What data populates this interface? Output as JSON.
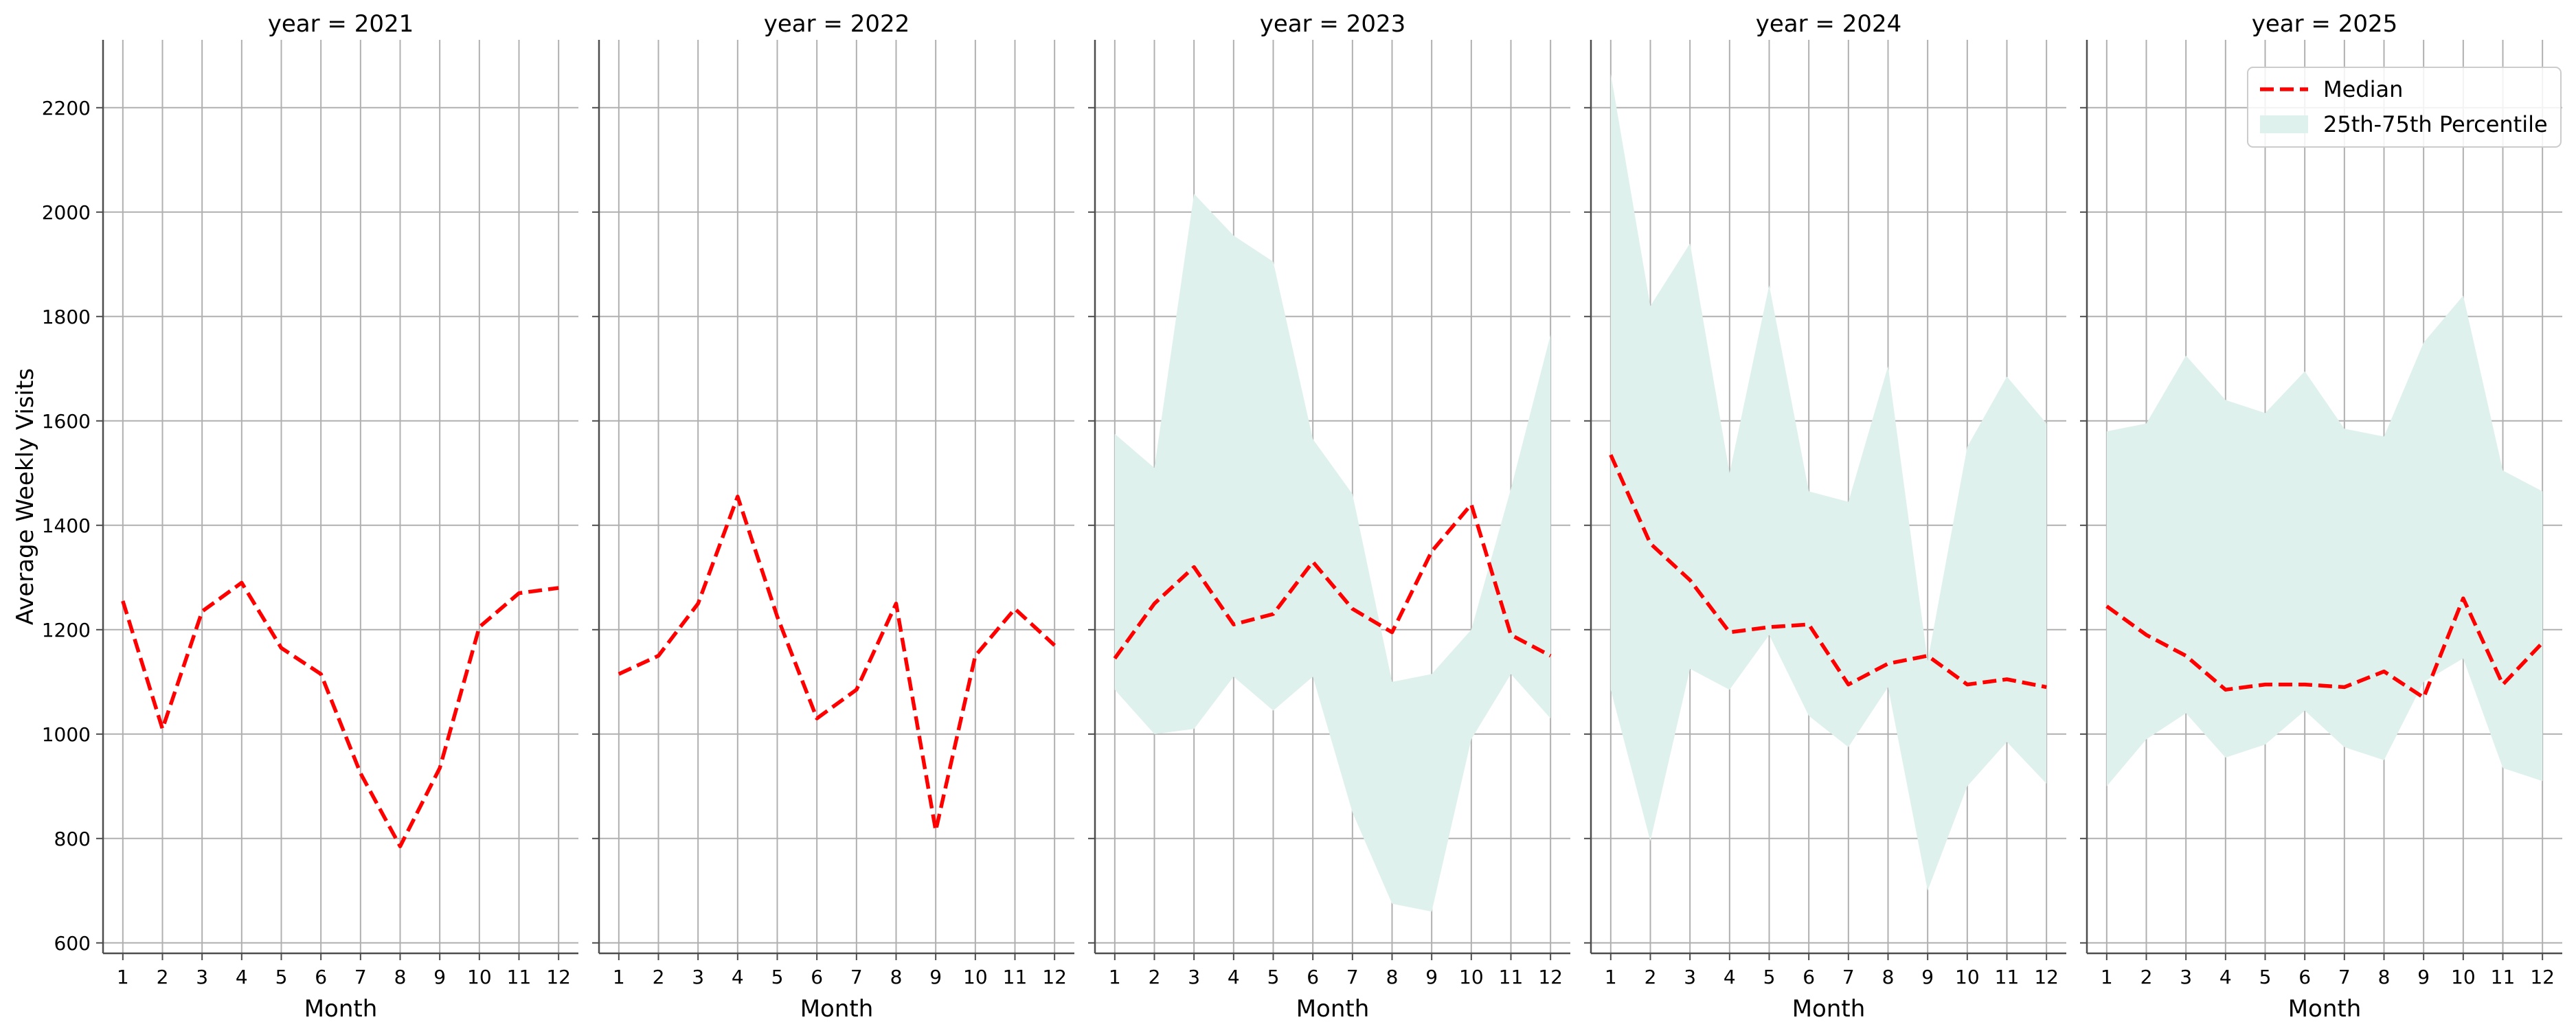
{
  "chart_data": {
    "type": "line",
    "ylabel": "Average Weekly Visits",
    "xlabel": "Month",
    "ylim": [
      580,
      2330
    ],
    "yticks": [
      600,
      800,
      1000,
      1200,
      1400,
      1600,
      1800,
      2000,
      2200
    ],
    "xlim": [
      0.5,
      12.5
    ],
    "xticks": [
      1,
      2,
      3,
      4,
      5,
      6,
      7,
      8,
      9,
      10,
      11,
      12
    ],
    "grid": true,
    "legend": {
      "placement": "top-right",
      "panel": "year = 2025",
      "entries": [
        "Median",
        "25th-75th Percentile"
      ]
    },
    "colors": {
      "median": "#ff0000",
      "band": "#dff1ec"
    },
    "panels": [
      {
        "title": "year = 2021",
        "median": [
          1255,
          1010,
          1235,
          1290,
          1165,
          1115,
          925,
          785,
          935,
          1205,
          1270,
          1280
        ],
        "p25": null,
        "p75": null
      },
      {
        "title": "year = 2022",
        "median": [
          1115,
          1150,
          1250,
          1455,
          1225,
          1030,
          1085,
          1250,
          815,
          1150,
          1240,
          1170
        ],
        "p25": null,
        "p75": null
      },
      {
        "title": "year = 2023",
        "median": [
          1145,
          1250,
          1320,
          1210,
          1230,
          1330,
          1240,
          1195,
          1350,
          1440,
          1190,
          1150
        ],
        "p25": [
          1085,
          1000,
          1010,
          1110,
          1045,
          1110,
          850,
          675,
          660,
          990,
          1115,
          1030
        ],
        "p75": [
          1575,
          1510,
          2035,
          1955,
          1905,
          1565,
          1460,
          1100,
          1115,
          1200,
          1470,
          1765
        ]
      },
      {
        "title": "year = 2024",
        "median": [
          1535,
          1365,
          1295,
          1195,
          1205,
          1210,
          1095,
          1135,
          1150,
          1095,
          1105,
          1090
        ],
        "p25": [
          1085,
          795,
          1125,
          1085,
          1190,
          1035,
          975,
          1090,
          700,
          900,
          985,
          905
        ],
        "p75": [
          2265,
          1820,
          1940,
          1500,
          1860,
          1465,
          1445,
          1705,
          1140,
          1550,
          1685,
          1595
        ]
      },
      {
        "title": "year = 2025",
        "median": [
          1245,
          1190,
          1150,
          1085,
          1095,
          1095,
          1090,
          1120,
          1070,
          1260,
          1095,
          1175
        ],
        "p25": [
          900,
          990,
          1040,
          955,
          980,
          1045,
          975,
          950,
          1100,
          1145,
          935,
          910
        ],
        "p75": [
          1580,
          1595,
          1725,
          1640,
          1615,
          1695,
          1585,
          1570,
          1750,
          1840,
          1505,
          1465
        ]
      }
    ]
  }
}
